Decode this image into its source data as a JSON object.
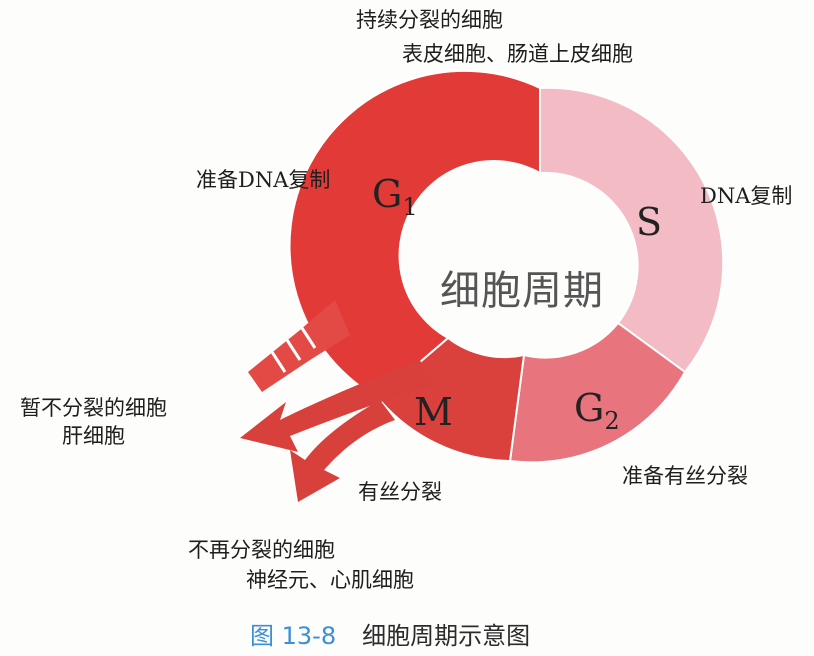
{
  "center": {
    "title": "细胞周期"
  },
  "phases": {
    "g1": {
      "letter": "G",
      "sub": "1",
      "desc": "准备DNA复制"
    },
    "s": {
      "letter": "S",
      "desc": "DNA复制"
    },
    "g2": {
      "letter": "G",
      "sub": "2",
      "desc": "准备有丝分裂"
    },
    "m": {
      "letter": "M",
      "desc": "有丝分裂"
    }
  },
  "cell_types": {
    "continuous": {
      "title": "持续分裂的细胞",
      "examples": "表皮细胞、肠道上皮细胞"
    },
    "temporary": {
      "title": "暂不分裂的细胞",
      "examples": "肝细胞"
    },
    "permanent": {
      "title": "不再分裂的细胞",
      "examples": "神经元、心肌细胞"
    }
  },
  "caption": {
    "number": "图 13-8",
    "title": "细胞周期示意图"
  },
  "colors": {
    "g1": "#e03a36",
    "s": "#f2b8c0",
    "g2": "#e9767f",
    "m": "#d8403c",
    "caption_number": "#3a8fd9"
  }
}
